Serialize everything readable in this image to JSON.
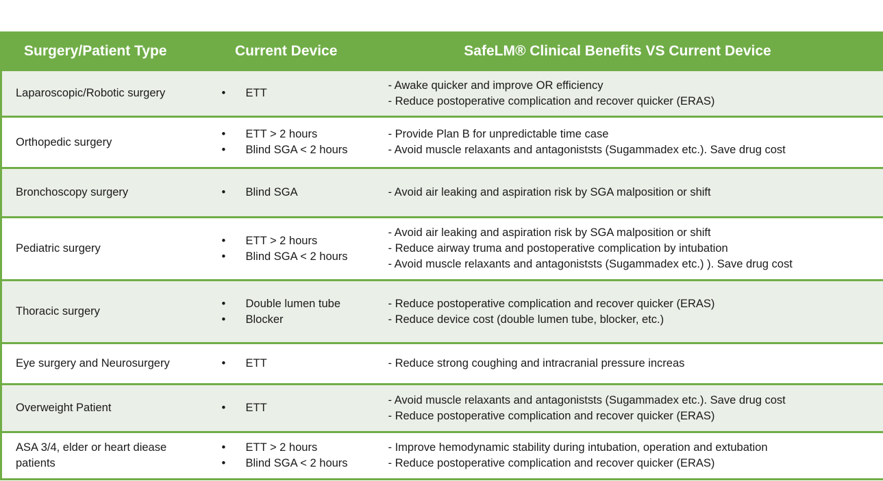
{
  "header": {
    "col1": "Surgery/Patient Type",
    "col2": "Current Device",
    "col3": "SafeLM® Clinical Benefits VS Current Device"
  },
  "colors": {
    "header_bg": "#70AD47",
    "alt_row": "#EAEFE7",
    "border": "#70AD47"
  },
  "rows": [
    {
      "type": "Laparoscopic/Robotic surgery",
      "devices": [
        "ETT"
      ],
      "benefits": [
        "- Awake quicker and improve OR efficiency",
        "- Reduce postoperative complication and recover quicker (ERAS)"
      ]
    },
    {
      "type": "Orthopedic surgery",
      "devices": [
        "ETT > 2 hours",
        "Blind SGA < 2 hours"
      ],
      "benefits": [
        "- Provide Plan B for unpredictable time case",
        "- Avoid muscle relaxants and antagoniststs (Sugammadex etc.). Save drug cost"
      ]
    },
    {
      "type": "Bronchoscopy surgery",
      "devices": [
        "Blind SGA"
      ],
      "benefits": [
        "- Avoid air leaking and aspiration risk by SGA malposition or shift"
      ]
    },
    {
      "type": "Pediatric surgery",
      "devices": [
        "ETT > 2 hours",
        "Blind SGA < 2 hours"
      ],
      "benefits": [
        "- Avoid air leaking and aspiration risk by SGA malposition or shift",
        "- Reduce airway truma and postoperative complication by intubation",
        "- Avoid muscle relaxants and antagoniststs (Sugammadex etc.) ). Save drug cost"
      ]
    },
    {
      "type": "Thoracic surgery",
      "devices": [
        "Double lumen tube",
        "Blocker"
      ],
      "benefits": [
        "- Reduce postoperative complication and recover quicker (ERAS)",
        "- Reduce device cost (double lumen tube, blocker, etc.)"
      ]
    },
    {
      "type": "Eye surgery and Neurosurgery",
      "devices": [
        "ETT"
      ],
      "benefits": [
        "- Reduce strong coughing and intracranial pressure increas"
      ]
    },
    {
      "type": "Overweight Patient",
      "devices": [
        "ETT"
      ],
      "benefits": [
        "- Avoid muscle relaxants and antagoniststs (Sugammadex etc.). Save drug cost",
        "- Reduce postoperative complication and recover quicker (ERAS)"
      ]
    },
    {
      "type": "ASA 3/4, elder or heart diease patients",
      "devices": [
        "ETT > 2 hours",
        "Blind SGA < 2 hours"
      ],
      "benefits": [
        "- Improve hemodynamic stability during intubation, operation and extubation",
        "- Reduce postoperative complication and recover quicker (ERAS)"
      ]
    }
  ]
}
